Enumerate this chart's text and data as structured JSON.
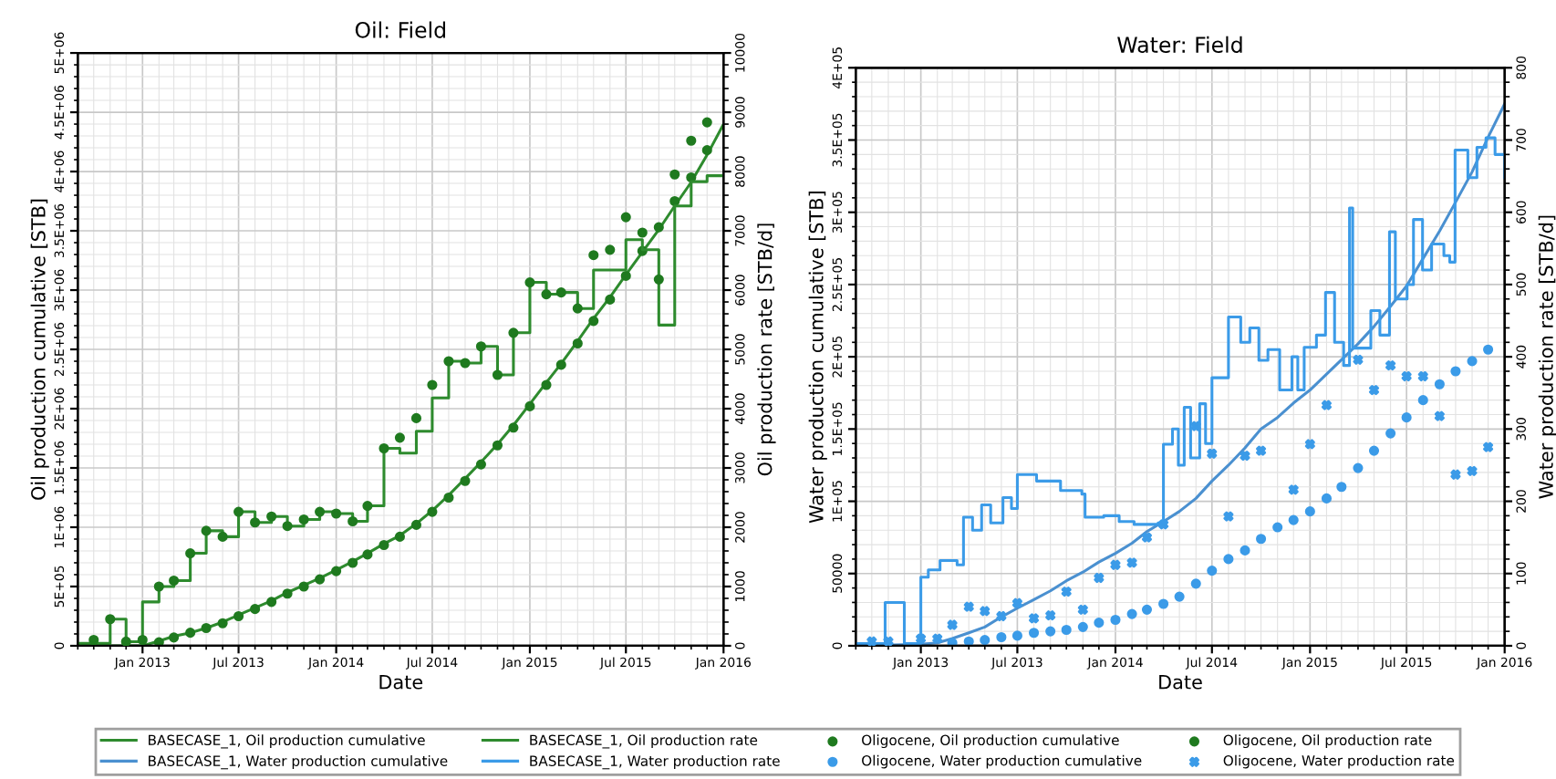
{
  "chart_data": [
    {
      "type": "line",
      "title": "Oil: Field",
      "xlabel": "Date",
      "ylabel": "Oil production cumulative [STB]",
      "y2label": "Oil production rate [STB/d]",
      "xlim": [
        "2012-09-01",
        "2016-01-01"
      ],
      "xticks": [
        {
          "value": "2013-01-01",
          "label": "Jan 2013"
        },
        {
          "value": "2013-07-01",
          "label": "Jul 2013"
        },
        {
          "value": "2014-01-01",
          "label": "Jan 2014"
        },
        {
          "value": "2014-07-01",
          "label": "Jul 2014"
        },
        {
          "value": "2015-01-01",
          "label": "Jan 2015"
        },
        {
          "value": "2015-07-01",
          "label": "Jul 2015"
        },
        {
          "value": "2016-01-01",
          "label": "Jan 2016"
        }
      ],
      "ylim": [
        0,
        5000000
      ],
      "yticks": [
        0,
        {
          "value": 500000,
          "label": "5E+05"
        },
        {
          "value": 1000000,
          "label": "1E+06"
        },
        {
          "value": 1500000,
          "label": "1.5E+06"
        },
        {
          "value": 2000000,
          "label": "2E+06"
        },
        {
          "value": 2500000,
          "label": "2.5E+06"
        },
        {
          "value": 3000000,
          "label": "3E+06"
        },
        {
          "value": 3500000,
          "label": "3.5E+06"
        },
        {
          "value": 4000000,
          "label": "4E+06"
        },
        {
          "value": 4500000,
          "label": "4.5E+06"
        },
        {
          "value": 5000000,
          "label": "5E+06"
        }
      ],
      "y2lim": [
        0,
        10000
      ],
      "y2ticks": [
        0,
        1000,
        2000,
        3000,
        4000,
        5000,
        6000,
        7000,
        8000,
        9000,
        10000
      ],
      "grid": true,
      "legend": "bottom",
      "series": [
        {
          "name": "BASECASE_1, Oil production cumulative",
          "color": "#2e8b2e",
          "x": [
            "2012-09",
            "2013-01",
            "2013-02",
            "2013-03",
            "2013-04",
            "2013-05",
            "2013-06",
            "2013-07",
            "2013-08",
            "2013-09",
            "2013-10",
            "2013-11",
            "2013-12",
            "2014-01",
            "2014-02",
            "2014-03",
            "2014-04",
            "2014-05",
            "2014-06",
            "2014-07",
            "2014-08",
            "2014-09",
            "2014-10",
            "2014-11",
            "2014-12",
            "2015-01",
            "2015-02",
            "2015-03",
            "2015-04",
            "2015-05",
            "2015-06",
            "2015-07",
            "2015-08",
            "2015-09",
            "2015-10",
            "2015-11",
            "2015-12",
            "2016-01"
          ],
          "values": [
            0,
            0,
            40000,
            80000,
            110000,
            150000,
            200000,
            260000,
            320000,
            380000,
            450000,
            510000,
            570000,
            640000,
            710000,
            780000,
            860000,
            930000,
            1030000,
            1140000,
            1270000,
            1410000,
            1550000,
            1700000,
            1860000,
            2040000,
            2220000,
            2380000,
            2570000,
            2760000,
            2940000,
            3130000,
            3320000,
            3510000,
            3710000,
            3910000,
            4140000,
            4400000
          ]
        },
        {
          "name": "BASECASE_1, Oil production rate",
          "type": "step",
          "axis": "y2",
          "color": "#2e8b2e",
          "x": [
            "2012-09",
            "2012-10",
            "2012-11",
            "2012-12",
            "2013-01",
            "2013-02",
            "2013-03",
            "2013-04",
            "2013-05",
            "2013-06",
            "2013-07",
            "2013-08",
            "2013-09",
            "2013-10",
            "2013-11",
            "2013-12",
            "2014-01",
            "2014-02",
            "2014-03",
            "2014-04",
            "2014-05",
            "2014-06",
            "2014-07",
            "2014-08",
            "2014-09",
            "2014-10",
            "2014-11",
            "2014-12",
            "2015-01",
            "2015-02",
            "2015-03",
            "2015-04",
            "2015-05",
            "2015-06",
            "2015-07",
            "2015-08",
            "2015-09",
            "2015-10",
            "2015-11",
            "2015-12",
            "2016-01"
          ],
          "values": [
            40,
            40,
            450,
            70,
            740,
            1000,
            1100,
            1560,
            1940,
            1840,
            2260,
            2080,
            2180,
            2020,
            2130,
            2260,
            2230,
            2100,
            2360,
            3330,
            3250,
            3620,
            4180,
            4800,
            4770,
            5050,
            4570,
            5280,
            6130,
            5930,
            5960,
            5690,
            6340,
            6340,
            6850,
            6680,
            5410,
            7420,
            7830,
            7930,
            7930
          ]
        },
        {
          "name": "Oligocene, Oil production cumulative",
          "type": "scatter",
          "marker": "circle",
          "color": "#1f7a1f",
          "x": [
            "2013-02",
            "2013-03",
            "2013-04",
            "2013-05",
            "2013-06",
            "2013-07",
            "2013-08",
            "2013-09",
            "2013-10",
            "2013-11",
            "2013-12",
            "2014-01",
            "2014-02",
            "2014-03",
            "2014-04",
            "2014-05",
            "2014-06",
            "2014-07",
            "2014-08",
            "2014-09",
            "2014-10",
            "2014-11",
            "2014-12",
            "2015-01",
            "2015-02",
            "2015-03",
            "2015-04",
            "2015-05",
            "2015-06",
            "2015-07",
            "2015-08",
            "2015-09",
            "2015-10",
            "2015-11",
            "2015-12"
          ],
          "values": [
            30000,
            70000,
            110000,
            150000,
            190000,
            250000,
            310000,
            370000,
            440000,
            500000,
            560000,
            630000,
            700000,
            770000,
            850000,
            920000,
            1020000,
            1130000,
            1250000,
            1390000,
            1530000,
            1690000,
            1840000,
            2020000,
            2200000,
            2370000,
            2550000,
            2740000,
            2920000,
            3120000,
            3330000,
            3530000,
            3750000,
            3950000,
            4180000
          ]
        },
        {
          "name": "Oligocene, Oil production rate",
          "type": "scatter",
          "axis": "y2",
          "marker": "circle",
          "color": "#1f7a1f",
          "x": [
            "2012-10",
            "2012-11",
            "2012-12",
            "2013-01",
            "2013-02",
            "2013-03",
            "2013-04",
            "2013-05",
            "2013-06",
            "2013-07",
            "2013-08",
            "2013-09",
            "2013-10",
            "2013-11",
            "2013-12",
            "2014-01",
            "2014-02",
            "2014-03",
            "2014-04",
            "2014-05",
            "2014-06",
            "2014-07",
            "2014-08",
            "2014-09",
            "2014-10",
            "2014-11",
            "2014-12",
            "2015-01",
            "2015-02",
            "2015-03",
            "2015-04",
            "2015-05",
            "2015-06",
            "2015-07",
            "2015-08",
            "2015-09",
            "2015-10",
            "2015-11",
            "2015-12"
          ],
          "values": [
            100,
            450,
            70,
            100,
            1000,
            1100,
            1560,
            1940,
            1840,
            2260,
            2080,
            2180,
            2020,
            2130,
            2260,
            2230,
            2100,
            2360,
            3330,
            3510,
            3840,
            4400,
            4800,
            4770,
            5050,
            4570,
            5280,
            6130,
            5930,
            5960,
            5690,
            6590,
            6680,
            7230,
            6970,
            6180,
            7950,
            8520,
            8830
          ]
        }
      ]
    },
    {
      "type": "line",
      "title": "Water: Field",
      "xlabel": "Date",
      "ylabel": "Water production cumulative [STB]",
      "y2label": "Water production rate [STB/d]",
      "xlim": [
        "2012-09-01",
        "2016-01-01"
      ],
      "xticks": [
        {
          "value": "2013-01-01",
          "label": "Jan 2013"
        },
        {
          "value": "2013-07-01",
          "label": "Jul 2013"
        },
        {
          "value": "2014-01-01",
          "label": "Jan 2014"
        },
        {
          "value": "2014-07-01",
          "label": "Jul 2014"
        },
        {
          "value": "2015-01-01",
          "label": "Jan 2015"
        },
        {
          "value": "2015-07-01",
          "label": "Jul 2015"
        },
        {
          "value": "2016-01-01",
          "label": "Jan 2016"
        }
      ],
      "ylim": [
        0,
        400000
      ],
      "yticks": [
        0,
        50000,
        {
          "value": 100000,
          "label": "1E+05"
        },
        {
          "value": 150000,
          "label": "1.5E+05"
        },
        {
          "value": 200000,
          "label": "2E+05"
        },
        {
          "value": 250000,
          "label": "2.5E+05"
        },
        {
          "value": 300000,
          "label": "3E+05"
        },
        {
          "value": 350000,
          "label": "3.5E+05"
        },
        {
          "value": 400000,
          "label": "4E+05"
        }
      ],
      "y2lim": [
        0,
        800
      ],
      "y2ticks": [
        0,
        100,
        200,
        300,
        400,
        500,
        600,
        700,
        800
      ],
      "grid": true,
      "legend": "bottom",
      "series": [
        {
          "name": "BASECASE_1, Water production cumulative",
          "color": "#4a90d0",
          "x": [
            "2012-09",
            "2013-01",
            "2013-02",
            "2013-03",
            "2013-04",
            "2013-05",
            "2013-06",
            "2013-07",
            "2013-08",
            "2013-09",
            "2013-10",
            "2013-11",
            "2013-12",
            "2014-01",
            "2014-02",
            "2014-03",
            "2014-04",
            "2014-05",
            "2014-06",
            "2014-07",
            "2014-08",
            "2014-09",
            "2014-10",
            "2014-11",
            "2014-12",
            "2015-01",
            "2015-02",
            "2015-03",
            "2015-04",
            "2015-05",
            "2015-06",
            "2015-07",
            "2015-08",
            "2015-09",
            "2015-10",
            "2015-11",
            "2015-12",
            "2016-01"
          ],
          "values": [
            0,
            1000,
            2000,
            5000,
            9000,
            13000,
            20000,
            26000,
            32000,
            38000,
            45000,
            51000,
            58000,
            64000,
            71000,
            79000,
            86000,
            93000,
            102000,
            114000,
            125000,
            137000,
            150000,
            158000,
            168000,
            177000,
            188000,
            198000,
            209000,
            221000,
            235000,
            249000,
            268000,
            287000,
            307000,
            328000,
            352000,
            375000
          ]
        },
        {
          "name": "BASECASE_1, Water production rate",
          "type": "step",
          "axis": "y2",
          "color": "#3b9be8",
          "x": [
            "2012-09-01",
            "2012-10-26",
            "2012-12-01",
            "2013-01-01",
            "2013-01-15",
            "2013-02-06",
            "2013-03-10",
            "2013-03-22",
            "2013-04-08",
            "2013-04-25",
            "2013-05-12",
            "2013-06-04",
            "2013-06-20",
            "2013-07-01",
            "2013-08-06",
            "2013-09-20",
            "2013-10-30",
            "2013-11-05",
            "2013-12-10",
            "2014-01-08",
            "2014-02-05",
            "2014-03-22",
            "2014-04-01",
            "2014-04-18",
            "2014-04-29",
            "2014-05-10",
            "2014-05-22",
            "2014-06-08",
            "2014-06-19",
            "2014-07-01",
            "2014-08-01",
            "2014-08-24",
            "2014-09-10",
            "2014-09-27",
            "2014-10-14",
            "2014-11-05",
            "2014-11-28",
            "2014-12-09",
            "2014-12-21",
            "2015-01-13",
            "2015-01-30",
            "2015-02-16",
            "2015-03-05",
            "2015-03-16",
            "2015-03-22",
            "2015-04-25",
            "2015-05-12",
            "2015-05-30",
            "2015-06-10",
            "2015-07-02",
            "2015-07-14",
            "2015-07-31",
            "2015-08-17",
            "2015-09-09",
            "2015-09-20",
            "2015-09-30",
            "2015-10-24",
            "2015-11-10",
            "2015-11-27",
            "2015-12-14",
            "2016-01-01"
          ],
          "values": [
            3,
            60,
            3,
            95,
            105,
            118,
            112,
            178,
            160,
            195,
            170,
            205,
            190,
            237,
            228,
            215,
            210,
            178,
            180,
            172,
            168,
            170,
            279,
            300,
            250,
            330,
            260,
            335,
            280,
            371,
            455,
            420,
            440,
            395,
            410,
            354,
            400,
            354,
            413,
            430,
            489,
            420,
            388,
            606,
            412,
            464,
            430,
            573,
            480,
            500,
            590,
            520,
            556,
            540,
            531,
            686,
            648,
            690,
            703,
            680,
            648
          ]
        },
        {
          "name": "Oligocene, Water production cumulative",
          "type": "scatter",
          "marker": "circle",
          "color": "#3b9be8",
          "x": [
            "2013-03",
            "2013-04",
            "2013-05",
            "2013-06",
            "2013-07",
            "2013-08",
            "2013-09",
            "2013-10",
            "2013-11",
            "2013-12",
            "2014-01",
            "2014-02",
            "2014-03",
            "2014-04",
            "2014-05",
            "2014-06",
            "2014-07",
            "2014-08",
            "2014-09",
            "2014-10",
            "2014-11",
            "2014-12",
            "2015-01",
            "2015-02",
            "2015-03",
            "2015-04",
            "2015-05",
            "2015-06",
            "2015-07",
            "2015-08",
            "2015-09",
            "2015-10",
            "2015-11",
            "2015-12"
          ],
          "values": [
            2000,
            3000,
            4000,
            6000,
            7000,
            9000,
            10000,
            11000,
            13000,
            16000,
            18000,
            22000,
            25000,
            29000,
            34000,
            43000,
            52000,
            60000,
            66000,
            74000,
            82000,
            87000,
            93000,
            102000,
            110000,
            123000,
            135000,
            147000,
            158000,
            170000,
            181000,
            190000,
            197000,
            205000
          ]
        },
        {
          "name": "Oligocene, Water production rate",
          "type": "scatter",
          "axis": "y2",
          "marker": "cross",
          "color": "#3b9be8",
          "x": [
            "2012-10",
            "2012-11",
            "2013-01",
            "2013-02",
            "2013-03",
            "2013-04",
            "2013-05",
            "2013-06",
            "2013-07",
            "2013-08",
            "2013-09",
            "2013-10",
            "2013-11",
            "2013-12",
            "2014-01",
            "2014-02",
            "2014-03",
            "2014-04",
            "2014-06",
            "2014-07",
            "2014-08",
            "2014-09",
            "2014-10",
            "2014-12",
            "2015-01",
            "2015-02",
            "2015-04",
            "2015-05",
            "2015-06",
            "2015-07",
            "2015-08",
            "2015-09",
            "2015-10",
            "2015-11",
            "2015-12"
          ],
          "values": [
            6,
            6,
            10,
            10,
            29,
            54,
            48,
            41,
            59,
            38,
            42,
            75,
            50,
            94,
            112,
            115,
            150,
            168,
            304,
            266,
            179,
            263,
            270,
            216,
            279,
            333,
            396,
            354,
            388,
            373,
            373,
            318,
            237,
            242,
            275
          ]
        }
      ]
    }
  ]
}
